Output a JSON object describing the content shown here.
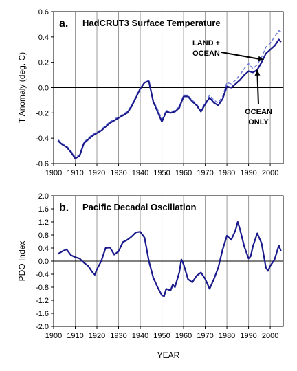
{
  "chart_data": [
    {
      "type": "line",
      "panel_letter": "a.",
      "title": "HadCRUT3 Surface Temperature",
      "xlabel": "",
      "ylabel": "T Anomaly (deg. C)",
      "xlim": [
        1900,
        2006
      ],
      "ylim": [
        -0.6,
        0.6
      ],
      "xticks": [
        1900,
        1910,
        1920,
        1930,
        1940,
        1950,
        1960,
        1970,
        1980,
        1990,
        2000
      ],
      "yticks": [
        "-0.6",
        "-0.4",
        "-0.2",
        "0.0",
        "0.2",
        "0.4",
        "0.6"
      ],
      "grid": "vertical",
      "annotations": [
        {
          "lines": [
            "LAND +",
            "OCEAN"
          ],
          "points_to": [
            1997,
            0.22
          ]
        },
        {
          "lines": [
            "OCEAN",
            "ONLY"
          ],
          "points_to": [
            1994,
            0.14
          ]
        }
      ],
      "series": [
        {
          "style": "dashed",
          "color": "#6a78d8",
          "x": [
            1902,
            1904,
            1906,
            1908,
            1910,
            1912,
            1914,
            1916,
            1918,
            1920,
            1922,
            1924,
            1926,
            1928,
            1930,
            1932,
            1934,
            1936,
            1938,
            1940,
            1942,
            1944,
            1946,
            1948,
            1950,
            1952,
            1954,
            1956,
            1958,
            1960,
            1962,
            1964,
            1966,
            1968,
            1970,
            1972,
            1974,
            1976,
            1978,
            1980,
            1982,
            1984,
            1986,
            1988,
            1990,
            1992,
            1994,
            1996,
            1998,
            2000,
            2002,
            2004,
            2005
          ],
          "y": [
            -0.41,
            -0.44,
            -0.46,
            -0.5,
            -0.55,
            -0.53,
            -0.43,
            -0.4,
            -0.37,
            -0.35,
            -0.33,
            -0.3,
            -0.27,
            -0.25,
            -0.23,
            -0.21,
            -0.19,
            -0.14,
            -0.07,
            0.0,
            0.04,
            0.06,
            -0.1,
            -0.17,
            -0.25,
            -0.18,
            -0.19,
            -0.18,
            -0.15,
            -0.06,
            -0.06,
            -0.1,
            -0.13,
            -0.18,
            -0.12,
            -0.06,
            -0.1,
            -0.12,
            -0.07,
            0.04,
            0.03,
            0.06,
            0.1,
            0.15,
            0.19,
            0.15,
            0.18,
            0.24,
            0.32,
            0.35,
            0.4,
            0.45,
            0.44
          ]
        },
        {
          "style": "solid",
          "color": "#1a1a8c",
          "x": [
            1902,
            1904,
            1906,
            1908,
            1910,
            1912,
            1914,
            1916,
            1918,
            1920,
            1922,
            1924,
            1926,
            1928,
            1930,
            1932,
            1934,
            1936,
            1938,
            1940,
            1942,
            1944,
            1946,
            1948,
            1950,
            1952,
            1954,
            1956,
            1958,
            1960,
            1962,
            1964,
            1966,
            1968,
            1970,
            1972,
            1974,
            1976,
            1978,
            1980,
            1982,
            1984,
            1986,
            1988,
            1990,
            1992,
            1994,
            1996,
            1998,
            2000,
            2002,
            2004,
            2005
          ],
          "y": [
            -0.42,
            -0.45,
            -0.47,
            -0.51,
            -0.56,
            -0.54,
            -0.44,
            -0.41,
            -0.38,
            -0.36,
            -0.34,
            -0.31,
            -0.28,
            -0.26,
            -0.24,
            -0.22,
            -0.2,
            -0.15,
            -0.08,
            -0.01,
            0.04,
            0.05,
            -0.11,
            -0.19,
            -0.27,
            -0.19,
            -0.2,
            -0.19,
            -0.16,
            -0.07,
            -0.07,
            -0.11,
            -0.14,
            -0.19,
            -0.13,
            -0.08,
            -0.12,
            -0.14,
            -0.09,
            0.01,
            0.0,
            0.03,
            0.06,
            0.1,
            0.13,
            0.12,
            0.14,
            0.2,
            0.27,
            0.3,
            0.33,
            0.38,
            0.36
          ]
        }
      ]
    },
    {
      "type": "line",
      "panel_letter": "b.",
      "title": "Pacific Decadal Oscillation",
      "xlabel": "YEAR",
      "ylabel": "PDO Index",
      "xlim": [
        1900,
        2006
      ],
      "ylim": [
        -2.0,
        2.0
      ],
      "xticks": [
        1900,
        1910,
        1920,
        1930,
        1940,
        1950,
        1960,
        1970,
        1980,
        1990,
        2000
      ],
      "yticks": [
        "-2.0",
        "-1.6",
        "-1.2",
        "-0.8",
        "-0.4",
        "0.0",
        "0.4",
        "0.8",
        "1.2",
        "1.6",
        "2.0"
      ],
      "grid": "vertical",
      "series": [
        {
          "style": "solid",
          "color": "#1a1a8c",
          "x": [
            1902,
            1904,
            1906,
            1908,
            1910,
            1912,
            1914,
            1916,
            1918,
            1919,
            1920,
            1922,
            1924,
            1926,
            1928,
            1930,
            1932,
            1934,
            1936,
            1938,
            1940,
            1942,
            1944,
            1946,
            1948,
            1950,
            1951,
            1952,
            1954,
            1955,
            1956,
            1958,
            1959,
            1960,
            1962,
            1964,
            1966,
            1968,
            1970,
            1972,
            1974,
            1976,
            1978,
            1980,
            1982,
            1984,
            1985,
            1986,
            1988,
            1990,
            1991,
            1992,
            1994,
            1996,
            1998,
            1999,
            2000,
            2002,
            2004,
            2005
          ],
          "y": [
            0.22,
            0.3,
            0.36,
            0.18,
            0.12,
            0.08,
            -0.05,
            -0.15,
            -0.35,
            -0.42,
            -0.25,
            0.0,
            0.4,
            0.42,
            0.2,
            0.3,
            0.58,
            0.65,
            0.75,
            0.88,
            0.9,
            0.72,
            0.0,
            -0.5,
            -0.8,
            -1.05,
            -1.08,
            -0.85,
            -0.9,
            -0.72,
            -0.8,
            -0.35,
            0.05,
            -0.1,
            -0.55,
            -0.65,
            -0.45,
            -0.35,
            -0.55,
            -0.85,
            -0.55,
            -0.2,
            0.35,
            0.78,
            0.65,
            0.95,
            1.2,
            0.98,
            0.45,
            0.08,
            0.15,
            0.45,
            0.85,
            0.55,
            -0.2,
            -0.3,
            -0.15,
            0.05,
            0.48,
            0.3
          ]
        }
      ]
    }
  ]
}
